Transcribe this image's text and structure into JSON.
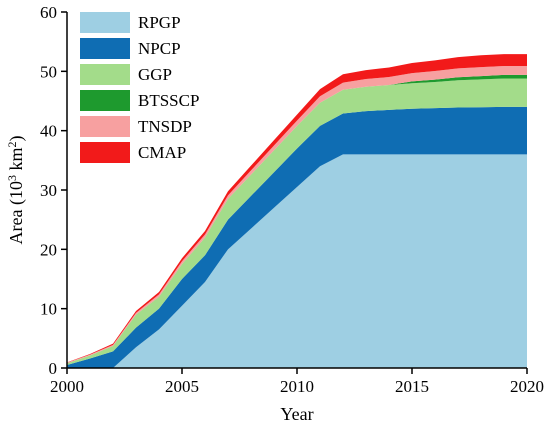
{
  "chart_data": {
    "type": "area",
    "stacked": true,
    "xlabel": "Year",
    "ylabel": "Area (10",
    "ylabel_sup1": "3",
    "ylabel_mid": " km",
    "ylabel_sup2": "2",
    "ylabel_end": ")",
    "xlim": [
      2000,
      2020
    ],
    "ylim": [
      0,
      60
    ],
    "xticks": [
      2000,
      2005,
      2010,
      2015,
      2020
    ],
    "yticks": [
      0,
      10,
      20,
      30,
      40,
      50,
      60
    ],
    "grid": false,
    "legend_position": "top-left",
    "x": [
      2000,
      2001,
      2002,
      2003,
      2004,
      2005,
      2006,
      2007,
      2008,
      2009,
      2010,
      2011,
      2012,
      2013,
      2014,
      2015,
      2016,
      2017,
      2018,
      2019,
      2020
    ],
    "series": [
      {
        "name": "RPGP",
        "color": "#9ecfe3",
        "values": [
          0,
          0,
          0,
          3.5,
          6.5,
          10.5,
          14.5,
          20,
          23.5,
          27,
          30.5,
          34,
          36,
          36,
          36,
          36,
          36,
          36,
          36,
          36,
          36
        ]
      },
      {
        "name": "NPCP",
        "color": "#0f6db3",
        "values": [
          0.5,
          1.6,
          2.8,
          3.3,
          3.5,
          4.5,
          4.5,
          5,
          5.5,
          6,
          6.5,
          6.8,
          6.9,
          7.3,
          7.5,
          7.7,
          7.8,
          7.9,
          7.95,
          8,
          8
        ]
      },
      {
        "name": "GGP",
        "color": "#a3dc8a",
        "values": [
          0.3,
          0.5,
          0.9,
          2.2,
          2,
          2.5,
          3,
          3.5,
          3.6,
          3.7,
          3.8,
          3.9,
          4,
          4.1,
          4.2,
          4.3,
          4.4,
          4.6,
          4.7,
          4.8,
          4.8
        ]
      },
      {
        "name": "BTSSCP",
        "color": "#1e9a2e",
        "values": [
          0,
          0,
          0,
          0,
          0,
          0,
          0,
          0,
          0,
          0,
          0,
          0,
          0,
          0,
          0,
          0.3,
          0.4,
          0.5,
          0.55,
          0.6,
          0.6
        ]
      },
      {
        "name": "TNSDP",
        "color": "#f7a0a0",
        "values": [
          0.1,
          0.15,
          0.2,
          0.3,
          0.4,
          0.5,
          0.5,
          0.6,
          0.7,
          0.8,
          0.9,
          1.1,
          1.2,
          1.3,
          1.35,
          1.4,
          1.45,
          1.5,
          1.5,
          1.5,
          1.5
        ]
      },
      {
        "name": "CMAP",
        "color": "#f21a1a",
        "values": [
          0.05,
          0.1,
          0.2,
          0.3,
          0.4,
          0.5,
          0.6,
          0.7,
          0.8,
          0.9,
          1,
          1.2,
          1.4,
          1.5,
          1.6,
          1.7,
          1.8,
          1.9,
          2,
          2,
          2
        ]
      }
    ]
  }
}
